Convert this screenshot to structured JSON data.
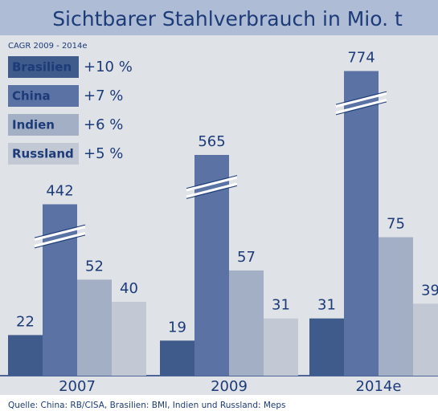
{
  "chart_data": {
    "type": "bar",
    "title": "Sichtbarer Stahlverbrauch in Mio. t",
    "subtitle": "CAGR 2009 - 2014e",
    "categories": [
      "2007",
      "2009",
      "2014e"
    ],
    "series": [
      {
        "name": "Brasilien",
        "cagr": "+10 %",
        "color": "#3f5b8c",
        "values": [
          22,
          19,
          31
        ]
      },
      {
        "name": "China",
        "cagr": "+7 %",
        "color": "#5a72a4",
        "values": [
          442,
          565,
          774
        ]
      },
      {
        "name": "Indien",
        "cagr": "+6 %",
        "color": "#a3afc4",
        "values": [
          52,
          57,
          75
        ]
      },
      {
        "name": "Russland",
        "cagr": "+5 %",
        "color": "#c3c9d4",
        "values": [
          40,
          31,
          39
        ]
      }
    ],
    "source": "Quelle: China: RB/CISA, Brasilien: BMI, Indien und Russland: Meps"
  }
}
